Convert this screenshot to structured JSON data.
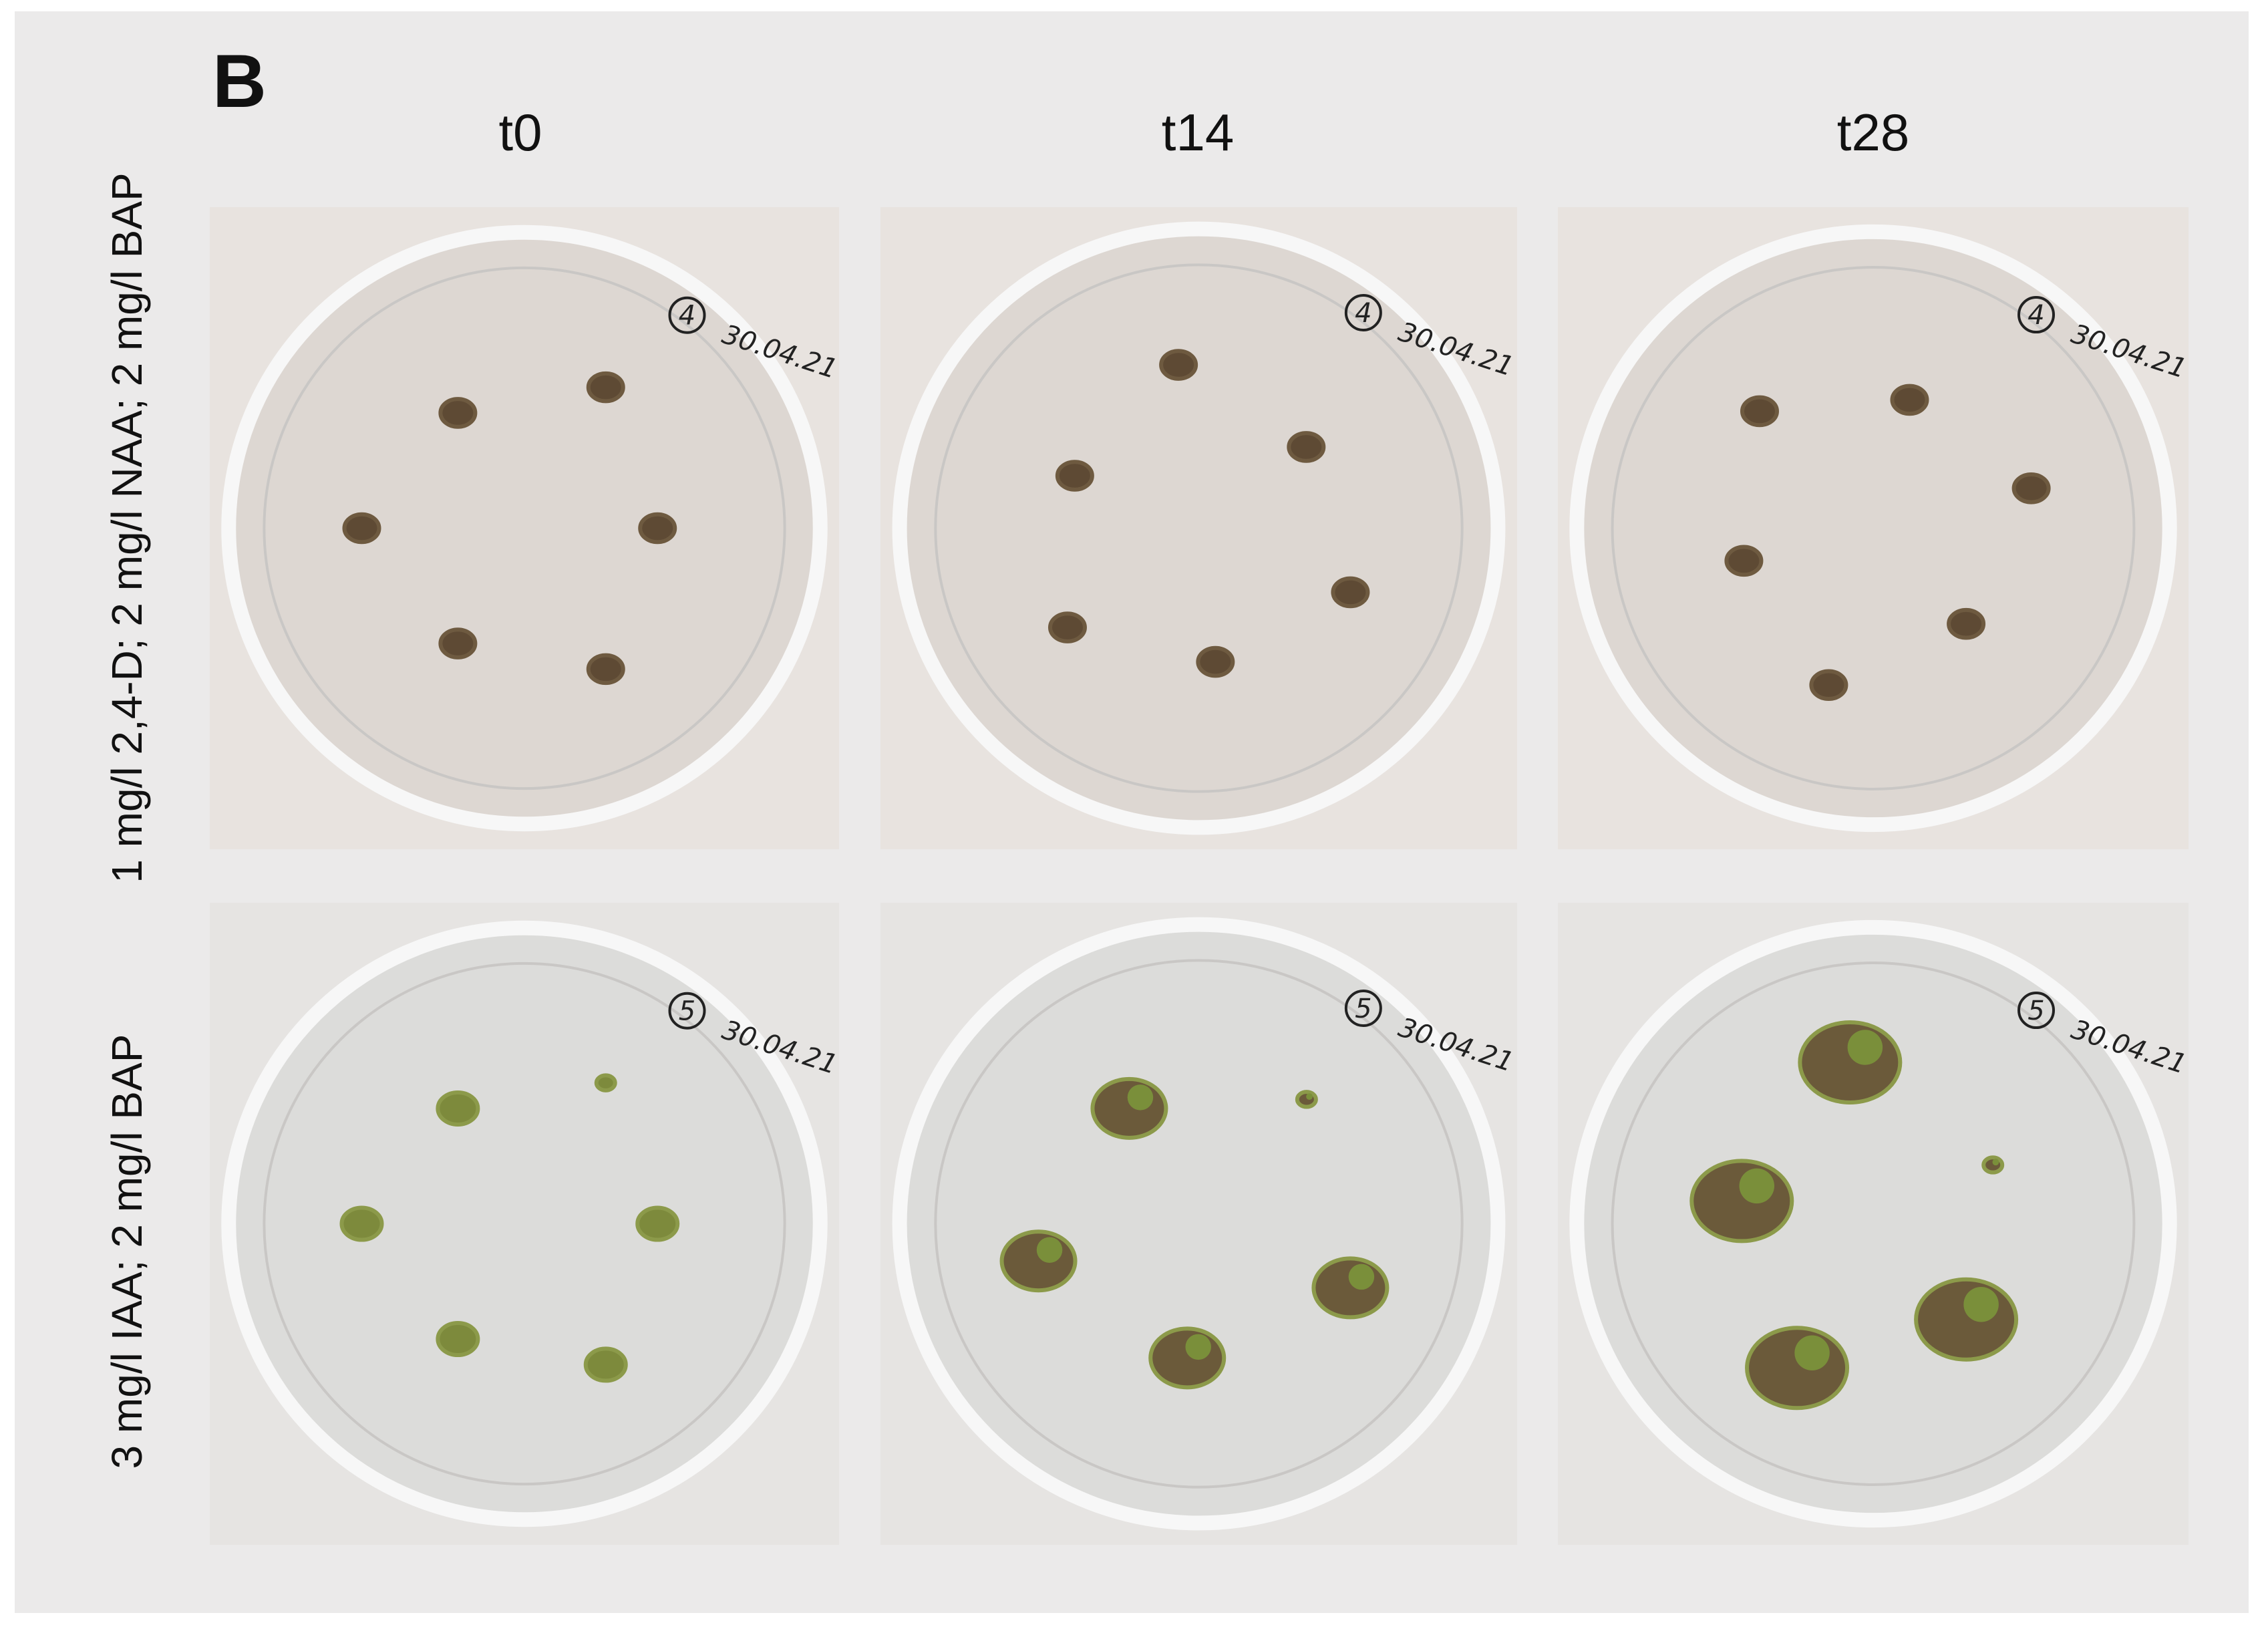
{
  "panel_label": "B",
  "columns": [
    "t0",
    "t14",
    "t28"
  ],
  "rows": [
    {
      "label": "1 mg/l 2,4-D; 2 mg/l NAA; 2 mg/l BAP",
      "plates": [
        {
          "number": "4",
          "date": "30.04.21"
        },
        {
          "number": "4",
          "date": "30.04.21"
        },
        {
          "number": "4",
          "date": "30.04.21"
        }
      ]
    },
    {
      "label": "3 mg/l IAA; 2 mg/l BAP",
      "plates": [
        {
          "number": "5",
          "date": "30.04.21"
        },
        {
          "number": "5",
          "date": "30.04.21"
        },
        {
          "number": "5",
          "date": "30.04.21"
        }
      ]
    }
  ]
}
